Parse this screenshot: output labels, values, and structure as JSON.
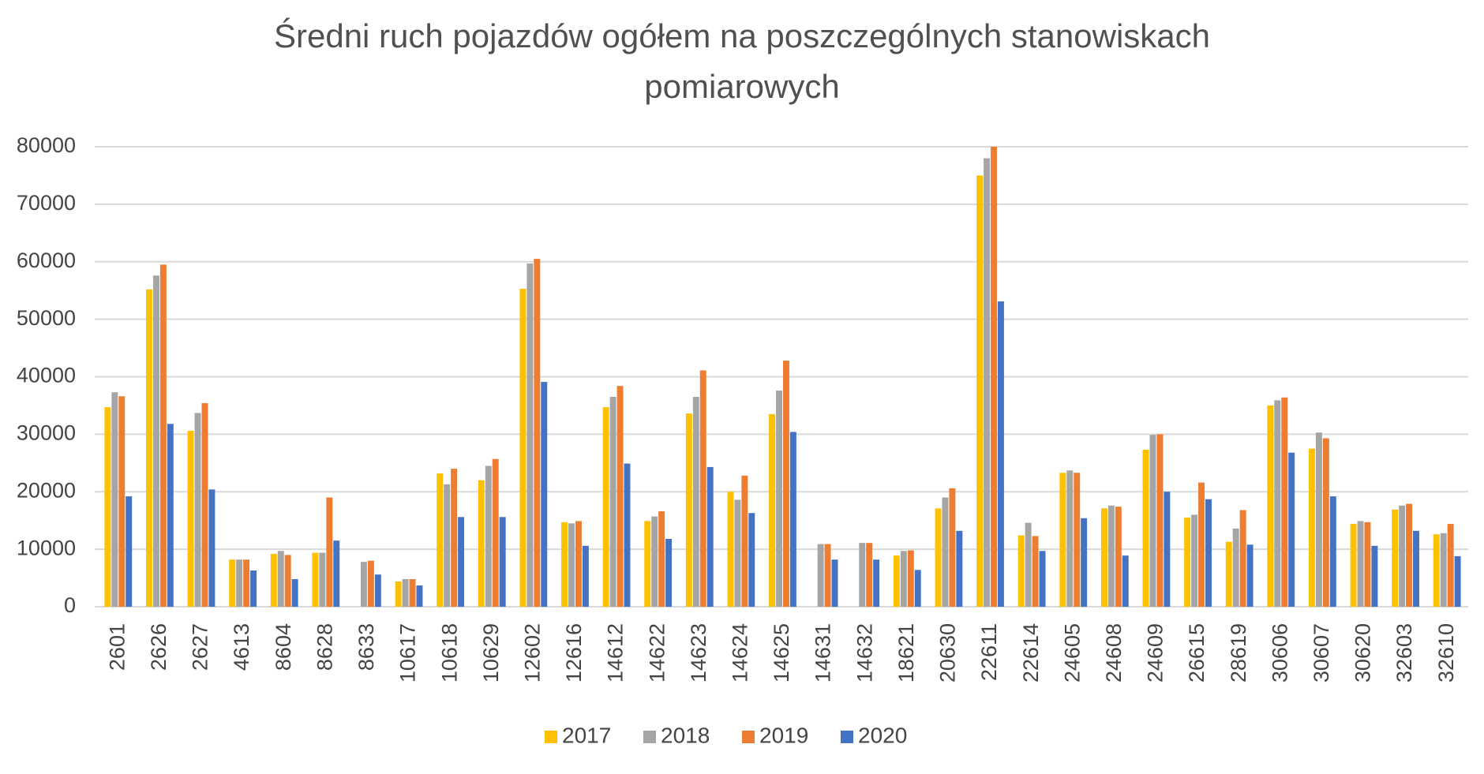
{
  "chart_data": {
    "type": "bar",
    "title": "Średni ruch pojazdów ogółem na poszczególnych stanowiskach pomiarowych",
    "categories": [
      "2601",
      "2626",
      "2627",
      "4613",
      "8604",
      "8628",
      "8633",
      "10617",
      "10618",
      "10629",
      "12602",
      "12616",
      "14612",
      "14622",
      "14623",
      "14624",
      "14625",
      "14631",
      "14632",
      "18621",
      "20630",
      "22611",
      "22614",
      "24605",
      "24608",
      "24609",
      "26615",
      "28619",
      "30606",
      "30607",
      "30620",
      "32603",
      "32610"
    ],
    "series": [
      {
        "name": "2017",
        "color": "#ffc000",
        "values": [
          34700,
          55200,
          30600,
          8200,
          9200,
          9400,
          null,
          4400,
          23200,
          22000,
          55300,
          14700,
          34700,
          14900,
          33600,
          20000,
          33500,
          null,
          null,
          8900,
          17100,
          75000,
          12400,
          23300,
          17100,
          27300,
          15500,
          11300,
          35000,
          27500,
          14400,
          16900,
          12600
        ]
      },
      {
        "name": "2018",
        "color": "#a5a5a5",
        "values": [
          37300,
          57600,
          33700,
          8200,
          9700,
          9400,
          7800,
          4800,
          21300,
          24500,
          59700,
          14500,
          36500,
          15700,
          36500,
          18600,
          37600,
          10900,
          11100,
          9700,
          19000,
          78000,
          14600,
          23700,
          17600,
          29900,
          16000,
          13600,
          35900,
          30300,
          14900,
          17600,
          12800
        ]
      },
      {
        "name": "2019",
        "color": "#ed7d31",
        "values": [
          36600,
          59500,
          35400,
          8200,
          9000,
          19000,
          8000,
          4800,
          24000,
          25700,
          60500,
          14900,
          38400,
          16600,
          41100,
          22800,
          42800,
          10900,
          11100,
          9800,
          20600,
          80000,
          12300,
          23300,
          17400,
          30000,
          21600,
          16800,
          36400,
          29300,
          14700,
          17900,
          14400
        ]
      },
      {
        "name": "2020",
        "color": "#4472c4",
        "values": [
          19200,
          31800,
          20400,
          6300,
          4800,
          11500,
          5600,
          3700,
          15600,
          15600,
          39100,
          10600,
          24900,
          11800,
          24300,
          16300,
          30400,
          8200,
          8200,
          6400,
          13200,
          53100,
          9700,
          15400,
          8900,
          20000,
          18700,
          10800,
          26800,
          19200,
          10600,
          13200,
          8800
        ]
      }
    ],
    "ylim": [
      0,
      80000
    ],
    "yticks": [
      0,
      10000,
      20000,
      30000,
      40000,
      50000,
      60000,
      70000,
      80000
    ],
    "grid": true,
    "legend": "bottom"
  }
}
